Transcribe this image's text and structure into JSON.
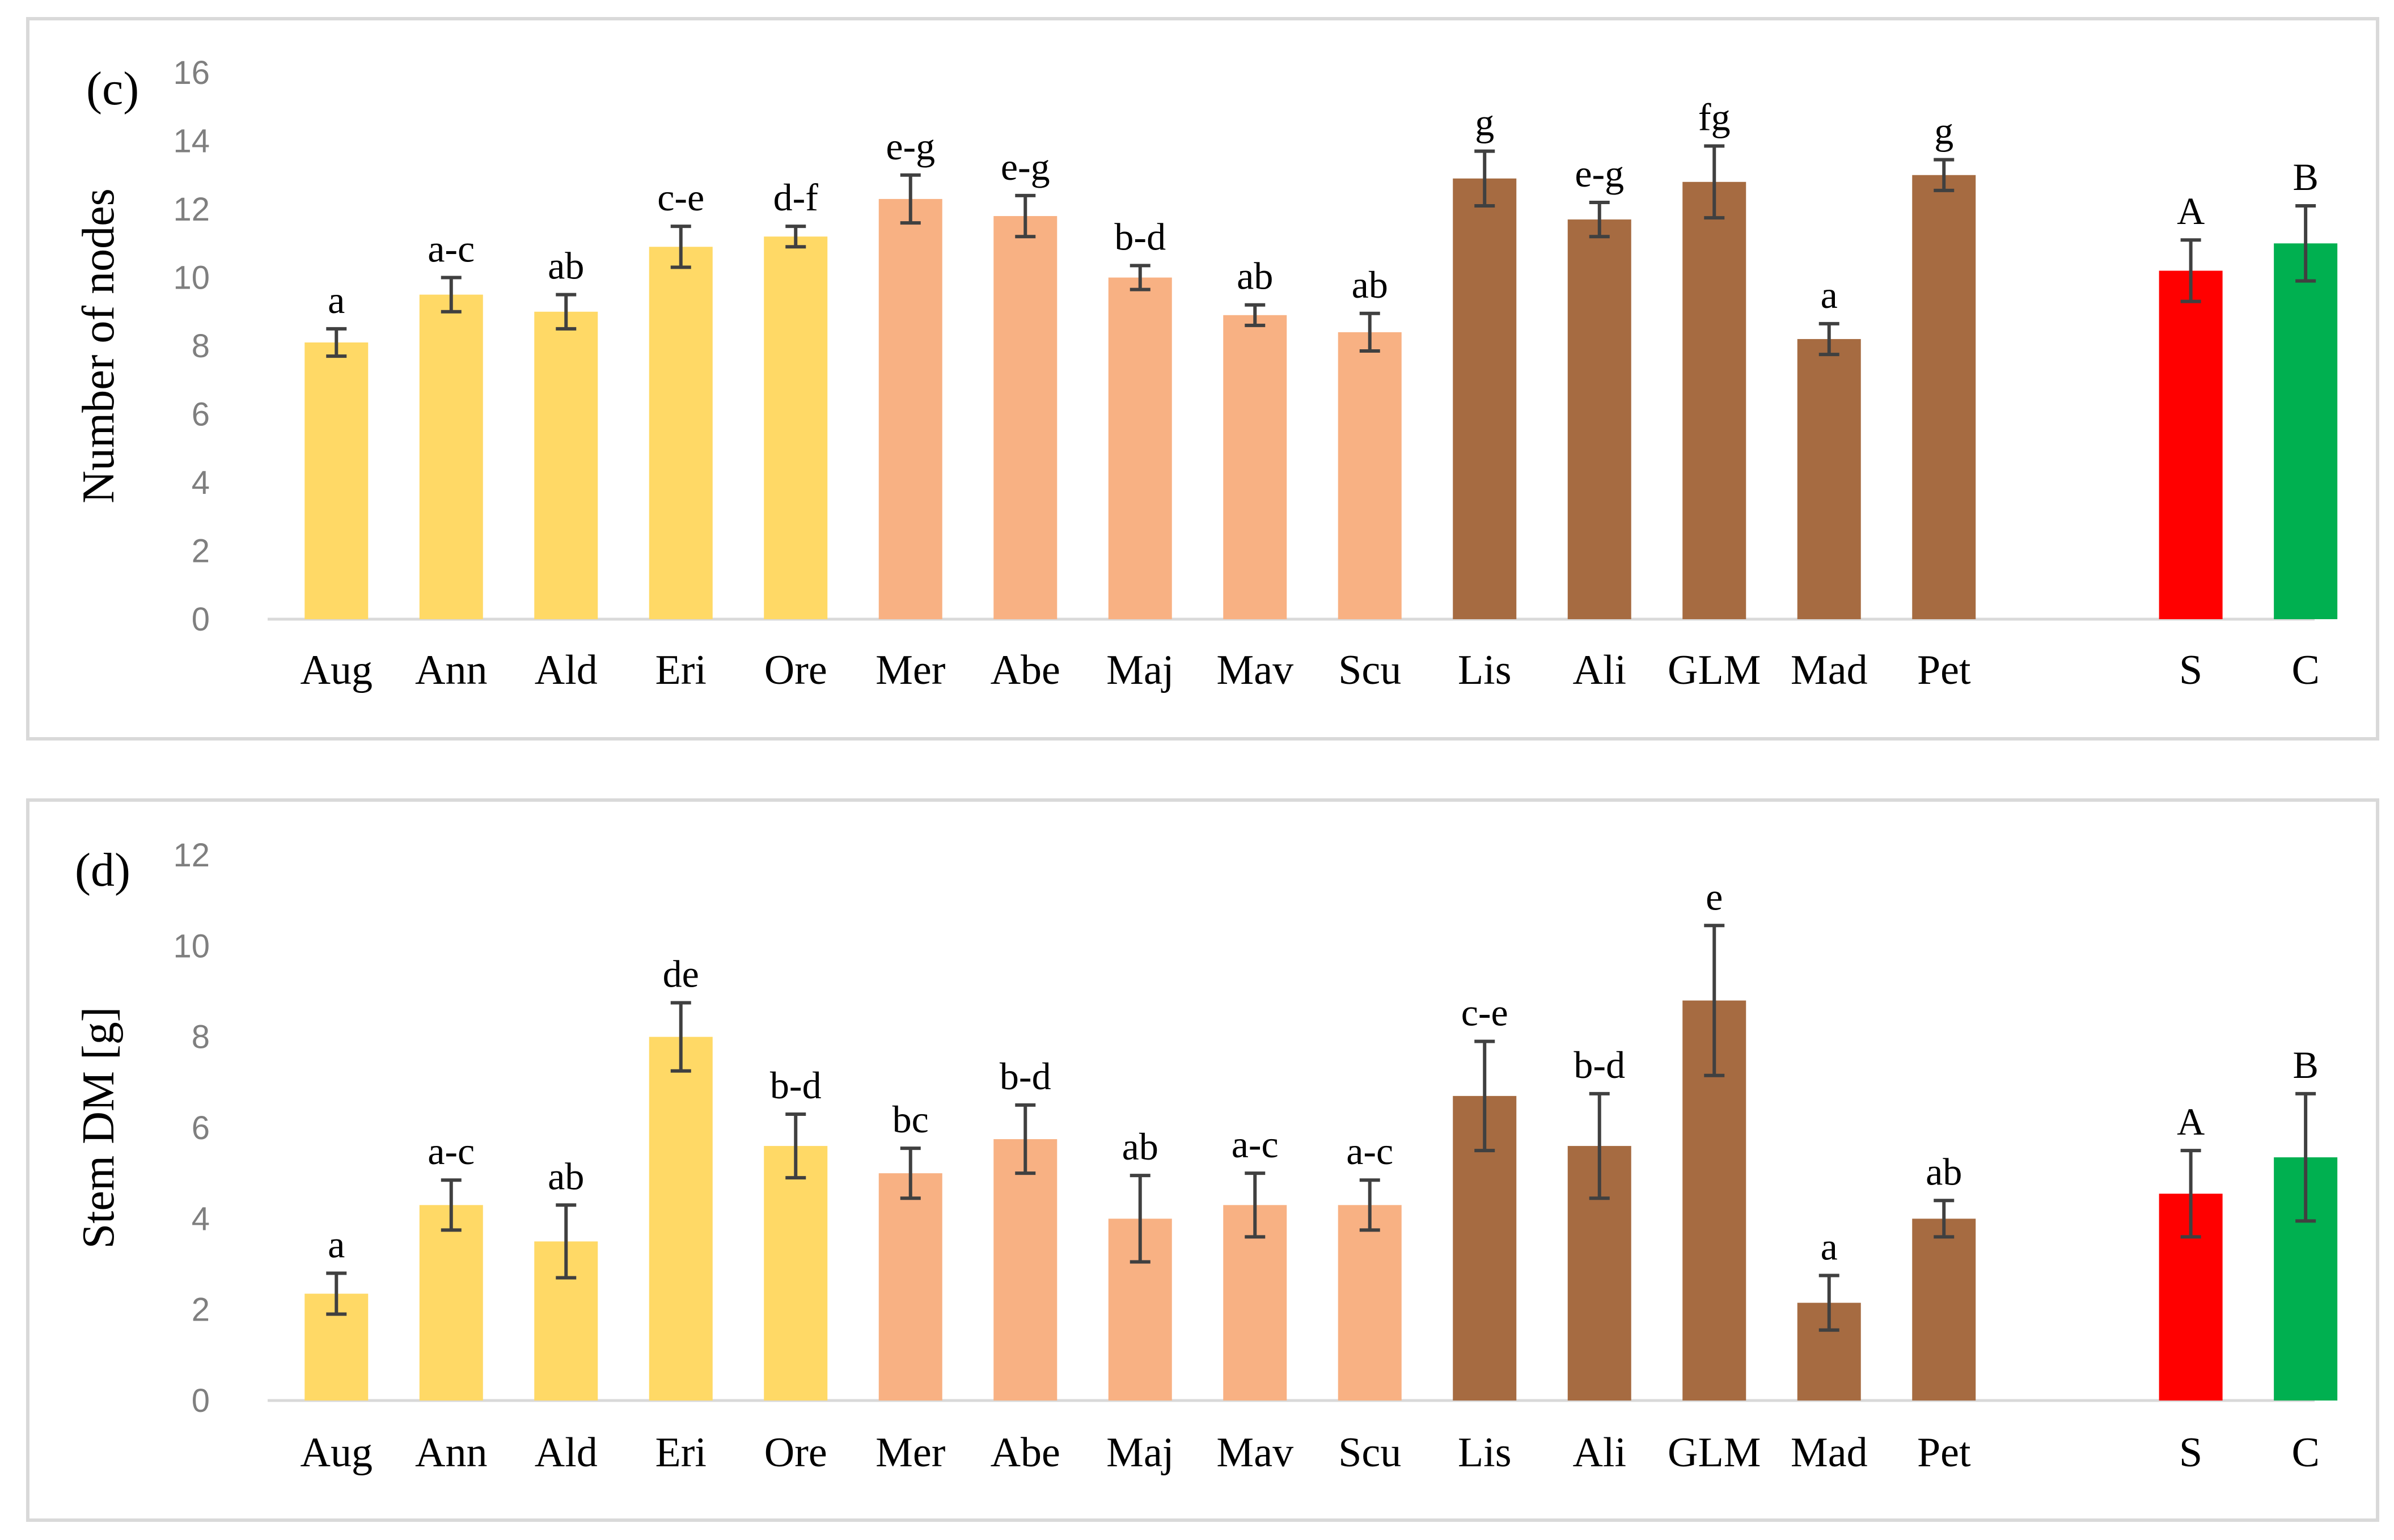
{
  "chart_data": [
    {
      "type": "bar",
      "panel_label": "(c)",
      "ylabel": "Number of nodes",
      "xlabel": "",
      "ylim": [
        0,
        16
      ],
      "yticks": [
        0,
        2,
        4,
        6,
        8,
        10,
        12,
        14,
        16
      ],
      "grid": false,
      "categories": [
        "Aug",
        "Ann",
        "Ald",
        "Eri",
        "Ore",
        "Mer",
        "Abe",
        "Maj",
        "Mav",
        "Scu",
        "Lis",
        "Ali",
        "GLM",
        "Mad",
        "Pet",
        "S",
        "C"
      ],
      "values": [
        8.1,
        9.5,
        9.0,
        10.9,
        11.2,
        12.3,
        11.8,
        10.0,
        8.9,
        8.4,
        12.9,
        11.7,
        12.8,
        8.2,
        13.0,
        10.2,
        11.0
      ],
      "errors": [
        0.4,
        0.5,
        0.5,
        0.6,
        0.3,
        0.7,
        0.6,
        0.35,
        0.3,
        0.55,
        0.8,
        0.5,
        1.05,
        0.45,
        0.45,
        0.9,
        1.1
      ],
      "significance": [
        "a",
        "a-c",
        "ab",
        "c-e",
        "d-f",
        "e-g",
        "e-g",
        "b-d",
        "ab",
        "ab",
        "g",
        "e-g",
        "fg",
        "a",
        "g",
        "A",
        "B"
      ],
      "colors": [
        "#FFD966",
        "#FFD966",
        "#FFD966",
        "#FFD966",
        "#FFD966",
        "#F8B183",
        "#F8B183",
        "#F8B183",
        "#F8B183",
        "#F8B183",
        "#A66B41",
        "#A66B41",
        "#A66B41",
        "#A66B41",
        "#A66B41",
        "#FF0000",
        "#00B050"
      ]
    },
    {
      "type": "bar",
      "panel_label": "(d)",
      "ylabel": "Stem DM [g]",
      "xlabel": "",
      "ylim": [
        0,
        12
      ],
      "yticks": [
        0,
        2,
        4,
        6,
        8,
        10,
        12
      ],
      "grid": false,
      "categories": [
        "Aug",
        "Ann",
        "Ald",
        "Eri",
        "Ore",
        "Mer",
        "Abe",
        "Maj",
        "Mav",
        "Scu",
        "Lis",
        "Ali",
        "GLM",
        "Mad",
        "Pet",
        "S",
        "C"
      ],
      "values": [
        2.35,
        4.3,
        3.5,
        8.0,
        5.6,
        5.0,
        5.75,
        4.0,
        4.3,
        4.3,
        6.7,
        5.6,
        8.8,
        2.15,
        4.0,
        4.55,
        5.35
      ],
      "errors": [
        0.45,
        0.55,
        0.8,
        0.75,
        0.7,
        0.55,
        0.75,
        0.95,
        0.7,
        0.55,
        1.2,
        1.15,
        1.65,
        0.6,
        0.4,
        0.95,
        1.4
      ],
      "significance": [
        "a",
        "a-c",
        "ab",
        "de",
        "b-d",
        "bc",
        "b-d",
        "ab",
        "a-c",
        "a-c",
        "c-e",
        "b-d",
        "e",
        "a",
        "ab",
        "A",
        "B"
      ],
      "colors": [
        "#FFD966",
        "#FFD966",
        "#FFD966",
        "#FFD966",
        "#FFD966",
        "#F8B183",
        "#F8B183",
        "#F8B183",
        "#F8B183",
        "#F8B183",
        "#A66B41",
        "#A66B41",
        "#A66B41",
        "#A66B41",
        "#A66B41",
        "#FF0000",
        "#00B050"
      ]
    }
  ]
}
